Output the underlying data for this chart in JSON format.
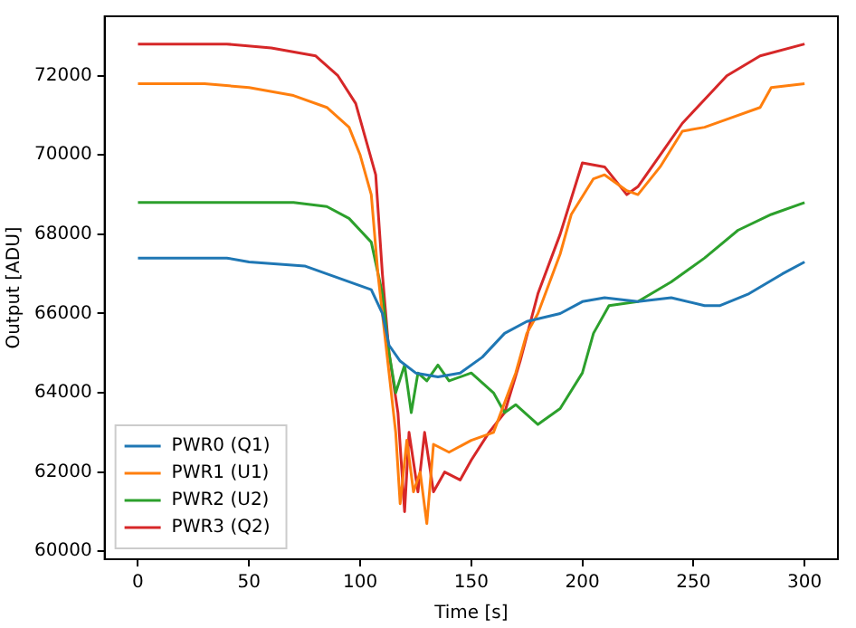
{
  "chart_data": {
    "type": "line",
    "xlabel": "Time [s]",
    "ylabel": "Output [ADU]",
    "xlim": [
      -15,
      315
    ],
    "xticks": [
      0,
      50,
      100,
      150,
      200,
      250,
      300
    ],
    "ylim": [
      59800,
      73500
    ],
    "yticks": [
      60000,
      62000,
      64000,
      66000,
      68000,
      70000,
      72000
    ],
    "grid": false,
    "legend": "bottom left",
    "marker": "none",
    "line_style": "solid",
    "series": [
      {
        "name": "PWR0 (Q1)",
        "color": "#1f77b4",
        "x": [
          0,
          20,
          40,
          50,
          75,
          95,
          105,
          110,
          113,
          118,
          125,
          135,
          145,
          155,
          165,
          175,
          190,
          200,
          210,
          225,
          240,
          255,
          262,
          275,
          290,
          300
        ],
        "values": [
          67400,
          67400,
          67400,
          67300,
          67200,
          66800,
          66600,
          66000,
          65200,
          64800,
          64500,
          64400,
          64500,
          64900,
          65500,
          65800,
          66000,
          66300,
          66400,
          66300,
          66400,
          66200,
          66200,
          66500,
          67000,
          67300
        ]
      },
      {
        "name": "PWR1 (U1)",
        "color": "#ff7f0e",
        "x": [
          0,
          30,
          50,
          70,
          85,
          95,
          100,
          105,
          108,
          110,
          113,
          116,
          118,
          121,
          124,
          127,
          130,
          133,
          140,
          150,
          160,
          170,
          175,
          180,
          190,
          195,
          205,
          210,
          220,
          225,
          235,
          245,
          255,
          265,
          280,
          285,
          300
        ],
        "values": [
          71800,
          71800,
          71700,
          71500,
          71200,
          70700,
          70000,
          69000,
          67000,
          66000,
          64500,
          63000,
          61200,
          62800,
          61500,
          62000,
          60700,
          62700,
          62500,
          62800,
          63000,
          64500,
          65500,
          66000,
          67500,
          68500,
          69400,
          69500,
          69100,
          69000,
          69700,
          70600,
          70700,
          70900,
          71200,
          71700,
          71800
        ]
      },
      {
        "name": "PWR2 (U2)",
        "color": "#2ca02c",
        "x": [
          0,
          40,
          70,
          85,
          95,
          105,
          110,
          113,
          116,
          120,
          123,
          126,
          130,
          135,
          140,
          150,
          160,
          165,
          170,
          180,
          190,
          200,
          205,
          212,
          225,
          240,
          255,
          270,
          285,
          300
        ],
        "values": [
          68800,
          68800,
          68800,
          68700,
          68400,
          67800,
          66500,
          65000,
          64000,
          64700,
          63500,
          64500,
          64300,
          64700,
          64300,
          64500,
          64000,
          63500,
          63700,
          63200,
          63600,
          64500,
          65500,
          66200,
          66300,
          66800,
          67400,
          68100,
          68500,
          68800
        ]
      },
      {
        "name": "PWR3 (Q2)",
        "color": "#d62728",
        "x": [
          0,
          40,
          60,
          80,
          90,
          98,
          102,
          107,
          110,
          113,
          117,
          120,
          122,
          126,
          129,
          133,
          138,
          145,
          150,
          158,
          165,
          172,
          180,
          190,
          200,
          210,
          220,
          225,
          235,
          245,
          255,
          265,
          280,
          300
        ],
        "values": [
          72800,
          72800,
          72700,
          72500,
          72000,
          71300,
          70500,
          69500,
          67000,
          65000,
          63500,
          61000,
          63000,
          61500,
          63000,
          61500,
          62000,
          61800,
          62300,
          63000,
          63500,
          64800,
          66500,
          68000,
          69800,
          69700,
          69000,
          69200,
          70000,
          70800,
          71400,
          72000,
          72500,
          72800
        ]
      }
    ]
  }
}
